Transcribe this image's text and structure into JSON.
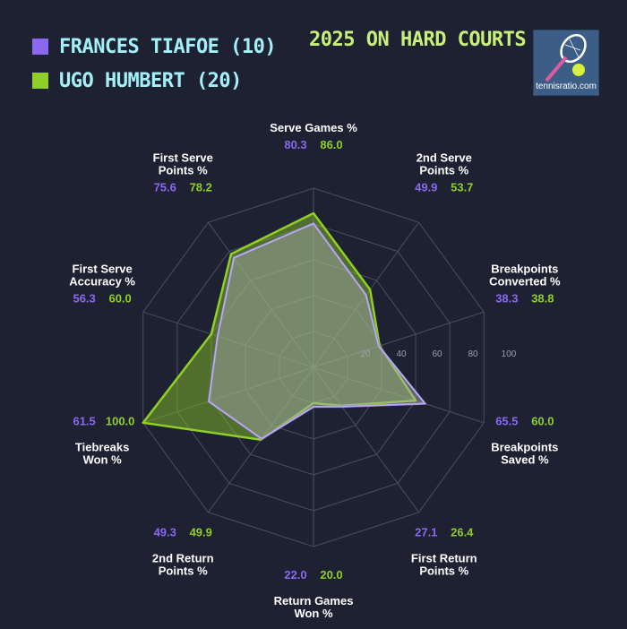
{
  "legend": {
    "tiafoe": "FRANCES TIAFOE (10)",
    "humbert": "UGO HUMBERT (20)"
  },
  "headline": "2025 ON HARD COURTS",
  "logo_text": "tennisratio.com",
  "colors": {
    "background": "#1e2132",
    "tiafoe": "#8b68f0",
    "humbert": "#8fcf26",
    "headline": "#c8f07a",
    "legend_text": "#a3f0f8",
    "grid": "#4a4e62"
  },
  "chart_data": {
    "type": "radar",
    "range": [
      0,
      100
    ],
    "ticks": [
      20,
      40,
      60,
      80,
      100
    ],
    "categories": [
      [
        "Serve Games %"
      ],
      [
        "2nd Serve",
        "Points %"
      ],
      [
        "Breakpoints",
        "Converted %"
      ],
      [
        "Breakpoints",
        "Saved %"
      ],
      [
        "First Return",
        "Points %"
      ],
      [
        "Return Games",
        "Won %"
      ],
      [
        "2nd Return",
        "Points %"
      ],
      [
        "Tiebreaks",
        "Won %"
      ],
      [
        "First Serve",
        "Accuracy %"
      ],
      [
        "First Serve",
        "Points %"
      ]
    ],
    "series": [
      {
        "name": "FRANCES TIAFOE (10)",
        "values": [
          80.3,
          49.9,
          38.3,
          65.5,
          27.1,
          22.0,
          49.3,
          61.5,
          56.3,
          75.6
        ]
      },
      {
        "name": "UGO HUMBERT (20)",
        "values": [
          86.0,
          53.7,
          38.8,
          60.0,
          26.4,
          20.0,
          49.9,
          100.0,
          60.0,
          78.2
        ]
      }
    ]
  }
}
